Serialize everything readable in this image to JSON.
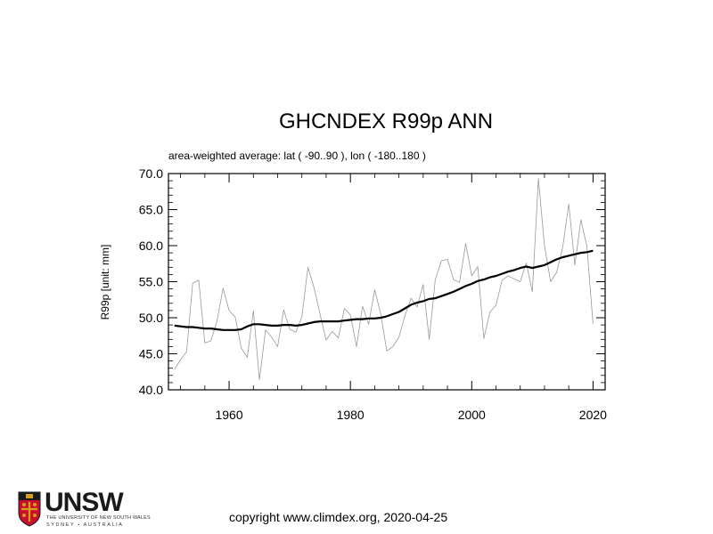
{
  "chart_data": {
    "type": "line",
    "title": "GHCNDEX R99p ANN",
    "subtitle": "area-weighted average: lat ( -90..90 ), lon ( -180..180 )",
    "xlabel": "",
    "ylabel": "R99p [unit: mm]",
    "xlim": [
      1950,
      2022
    ],
    "ylim": [
      40.0,
      70.0
    ],
    "xticks": [
      "1960",
      "1980",
      "2000",
      "2020"
    ],
    "xtick_values": [
      1960,
      1980,
      2000,
      2020
    ],
    "yticks": [
      "40.0",
      "45.0",
      "50.0",
      "55.0",
      "60.0",
      "65.0",
      "70.0"
    ],
    "ytick_values": [
      40,
      45,
      50,
      55,
      60,
      65,
      70
    ],
    "grid": false,
    "legend": "none",
    "x": [
      1951,
      1952,
      1953,
      1954,
      1955,
      1956,
      1957,
      1958,
      1959,
      1960,
      1961,
      1962,
      1963,
      1964,
      1965,
      1966,
      1967,
      1968,
      1969,
      1970,
      1971,
      1972,
      1973,
      1974,
      1975,
      1976,
      1977,
      1978,
      1979,
      1980,
      1981,
      1982,
      1983,
      1984,
      1985,
      1986,
      1987,
      1988,
      1989,
      1990,
      1991,
      1992,
      1993,
      1994,
      1995,
      1996,
      1997,
      1998,
      1999,
      2000,
      2001,
      2002,
      2003,
      2004,
      2005,
      2006,
      2007,
      2008,
      2009,
      2010,
      2011,
      2012,
      2013,
      2014,
      2015,
      2016,
      2017,
      2018,
      2019,
      2020
    ],
    "series": [
      {
        "name": "",
        "style": "thin",
        "color": "#999999",
        "values": [
          42.8,
          44.2,
          45.3,
          54.8,
          55.2,
          46.5,
          46.8,
          49.5,
          54.1,
          51.0,
          50.1,
          45.8,
          44.5,
          51.0,
          41.4,
          48.3,
          47.3,
          46.0,
          51.1,
          48.4,
          48.0,
          50.1,
          57.0,
          54.2,
          50.5,
          46.9,
          48.1,
          47.2,
          51.3,
          50.4,
          46.0,
          51.6,
          49.1,
          53.9,
          50.5,
          45.4,
          46.0,
          47.3,
          50.3,
          52.7,
          51.5,
          54.6,
          47.0,
          55.3,
          57.9,
          58.1,
          55.3,
          54.9,
          60.3,
          55.8,
          57.1,
          47.1,
          50.8,
          51.7,
          55.2,
          55.8,
          55.4,
          55.0,
          57.6,
          53.6,
          69.3,
          60.0,
          55.0,
          56.3,
          59.8,
          65.8,
          57.3,
          63.6,
          59.8,
          49.1
        ]
      },
      {
        "name": "",
        "style": "thick",
        "color": "#000000",
        "values": [
          48.9,
          48.8,
          48.7,
          48.7,
          48.6,
          48.5,
          48.5,
          48.4,
          48.3,
          48.3,
          48.3,
          48.4,
          48.8,
          49.1,
          49.1,
          49.0,
          48.9,
          48.9,
          49.0,
          49.0,
          48.9,
          49.0,
          49.2,
          49.4,
          49.5,
          49.5,
          49.5,
          49.5,
          49.6,
          49.7,
          49.8,
          49.8,
          49.9,
          49.9,
          50.0,
          50.2,
          50.5,
          50.8,
          51.3,
          51.8,
          52.1,
          52.3,
          52.6,
          52.7,
          53.0,
          53.3,
          53.6,
          54.0,
          54.4,
          54.7,
          55.1,
          55.3,
          55.6,
          55.8,
          56.1,
          56.4,
          56.6,
          56.9,
          57.1,
          56.9,
          57.1,
          57.3,
          57.7,
          58.1,
          58.4,
          58.6,
          58.8,
          59.0,
          59.1,
          59.3
        ]
      }
    ]
  },
  "footer": {
    "copyright": "copyright www.climdex.org, 2020-04-25"
  },
  "logo": {
    "wordmark": "UNSW",
    "line1": "THE UNIVERSITY OF NEW SOUTH WALES",
    "line2": "SYDNEY • AUSTRALIA",
    "colors": {
      "shield_red": "#c8102e",
      "shield_gold": "#d4a017",
      "text": "#1a1a1a"
    }
  }
}
